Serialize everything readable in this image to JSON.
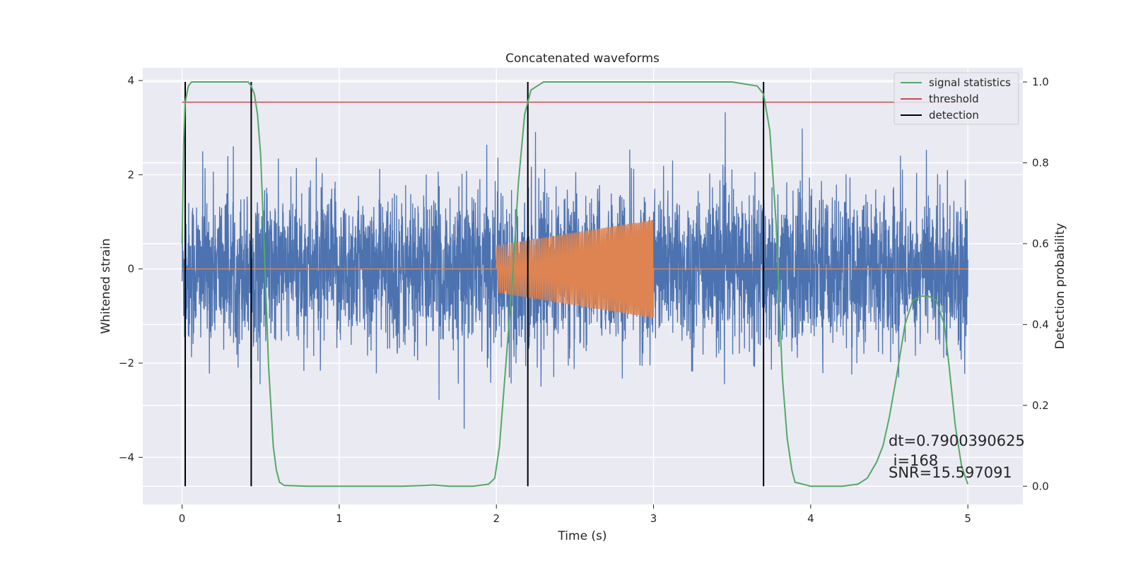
{
  "chart_data": {
    "type": "line",
    "title": "Concatenated waveforms",
    "xlabel": "Time (s)",
    "ylabel": "Whitened strain",
    "y2label": "Detection probability",
    "xlim": [
      -0.25,
      5.35
    ],
    "ylim": [
      -5.0,
      4.27
    ],
    "y2lim": [
      -0.045,
      1.035
    ],
    "xticks": [
      0,
      1,
      2,
      3,
      4,
      5
    ],
    "yticks": [
      -4,
      -2,
      0,
      2,
      4
    ],
    "y2ticks": [
      0.0,
      0.2,
      0.4,
      0.6,
      0.8,
      1.0
    ],
    "xtick_labels": [
      "0",
      "1",
      "2",
      "3",
      "4",
      "5"
    ],
    "ytick_labels": [
      "−4",
      "−2",
      "0",
      "2",
      "4"
    ],
    "y2tick_labels": [
      "0.0",
      "0.2",
      "0.4",
      "0.6",
      "0.8",
      "1.0"
    ],
    "grid": true,
    "legend_placement": "top-right",
    "colors": {
      "strain": "#4c72b0",
      "template": "#dd8452",
      "signal": "#55a868",
      "threshold": "#c44e52",
      "detection": "#000000",
      "background": "#eaeaf2",
      "grid": "#ffffff"
    },
    "noise": {
      "x_range": [
        0,
        5
      ],
      "amplitude_std": 0.95
    },
    "template": {
      "x_start": 2.0,
      "x_end": 3.0,
      "amplitude_start": 0.5,
      "amplitude_end": 1.05,
      "cycles": 95
    },
    "threshold": {
      "y": 0.95,
      "x_range": [
        0,
        5
      ]
    },
    "detections": [
      0.02,
      0.44,
      2.2,
      3.7
    ],
    "signal_statistics": {
      "x": [
        0,
        0.01,
        0.02,
        0.04,
        0.06,
        0.1,
        0.2,
        0.35,
        0.42,
        0.44,
        0.46,
        0.48,
        0.5,
        0.52,
        0.55,
        0.58,
        0.6,
        0.62,
        0.65,
        0.8,
        1.0,
        1.2,
        1.4,
        1.55,
        1.6,
        1.7,
        1.85,
        1.95,
        1.99,
        2.02,
        2.06,
        2.1,
        2.14,
        2.18,
        2.22,
        2.3,
        2.5,
        3.0,
        3.5,
        3.66,
        3.7,
        3.74,
        3.78,
        3.8,
        3.82,
        3.85,
        3.88,
        3.9,
        4.0,
        4.2,
        4.3,
        4.36,
        4.42,
        4.46,
        4.5,
        4.55,
        4.6,
        4.65,
        4.7,
        4.75,
        4.8,
        4.85,
        4.88,
        4.92,
        4.96,
        5.0
      ],
      "y": [
        0.6,
        0.85,
        0.95,
        0.99,
        1.0,
        1.0,
        1.0,
        1.0,
        1.0,
        0.99,
        0.97,
        0.92,
        0.82,
        0.62,
        0.3,
        0.1,
        0.04,
        0.01,
        0.002,
        0.0,
        0.0,
        0.0,
        0.0,
        0.002,
        0.003,
        0.0,
        0.0,
        0.005,
        0.02,
        0.1,
        0.3,
        0.5,
        0.75,
        0.92,
        0.98,
        1.0,
        1.0,
        1.0,
        1.0,
        0.99,
        0.97,
        0.88,
        0.65,
        0.45,
        0.27,
        0.12,
        0.04,
        0.01,
        0.0,
        0.0,
        0.005,
        0.02,
        0.06,
        0.1,
        0.17,
        0.28,
        0.4,
        0.46,
        0.47,
        0.47,
        0.46,
        0.4,
        0.3,
        0.15,
        0.05,
        0.005
      ]
    },
    "legend": [
      {
        "label": "signal statistics",
        "key": "signal"
      },
      {
        "label": "threshold",
        "key": "threshold"
      },
      {
        "label": "detection",
        "key": "detection"
      }
    ],
    "annotations": {
      "dt": "dt=0.7900390625",
      "i": " i=168",
      "snr": "SNR=15.597091"
    }
  }
}
